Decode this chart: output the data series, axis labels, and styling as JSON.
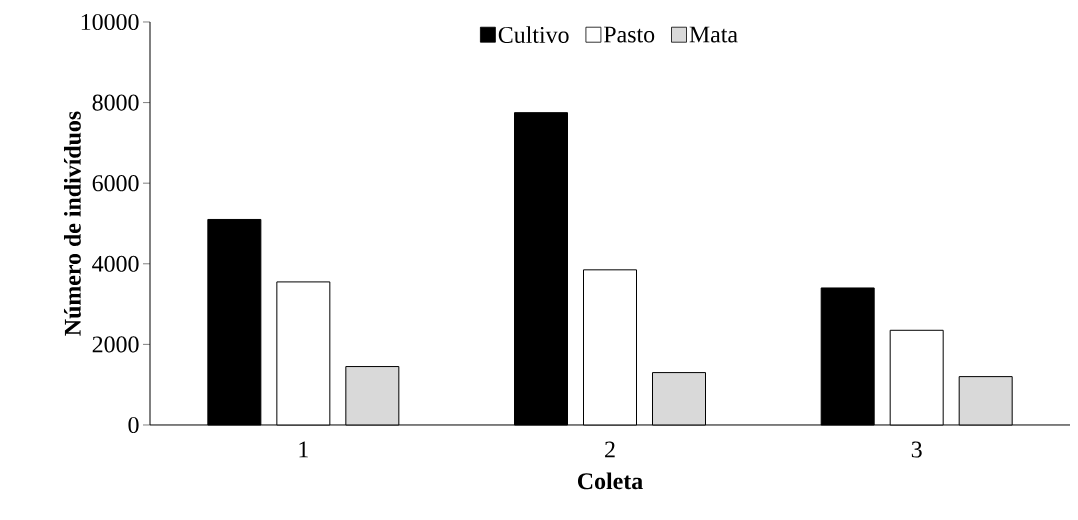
{
  "chart_data": {
    "type": "bar",
    "xlabel": "Coleta",
    "ylabel": "Número de indivíduos",
    "categories": [
      "1",
      "2",
      "3"
    ],
    "series": [
      {
        "name": "Cultivo",
        "color": "#000000",
        "values": [
          5100,
          7750,
          3400
        ]
      },
      {
        "name": "Pasto",
        "color": "#ffffff",
        "values": [
          3550,
          3850,
          2350
        ]
      },
      {
        "name": "Mata",
        "color": "#d9d9d9",
        "values": [
          1450,
          1300,
          1200
        ]
      }
    ],
    "ylim": [
      0,
      10000
    ],
    "yticks": [
      0,
      2000,
      4000,
      6000,
      8000,
      10000
    ],
    "grid": false,
    "legend": "top"
  }
}
